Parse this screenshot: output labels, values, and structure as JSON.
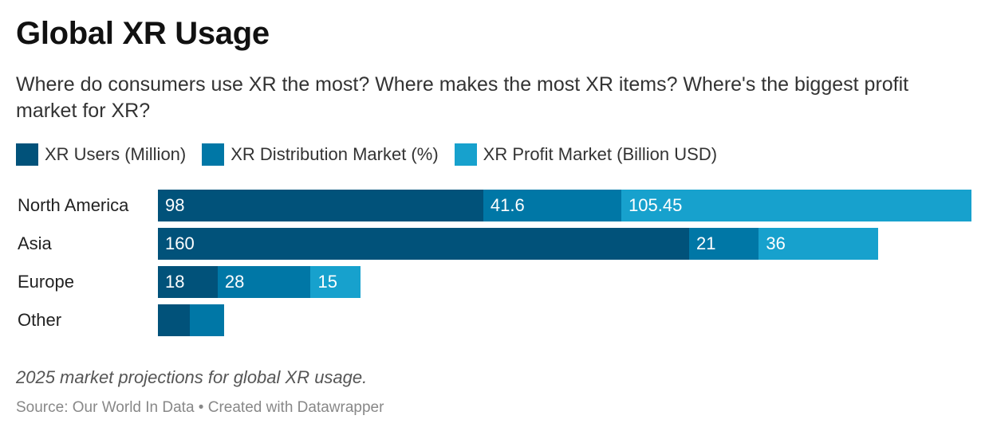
{
  "header": {
    "title": "Global XR Usage",
    "subtitle": "Where do consumers use XR the most? Where makes the most XR items? Where's the biggest profit market for XR?"
  },
  "legend": [
    {
      "label": "XR Users (Million)",
      "color": "#01527a"
    },
    {
      "label": "XR Distribution Market (%)",
      "color": "#0077a6"
    },
    {
      "label": "XR Profit Market (Billion USD)",
      "color": "#17a1cd"
    }
  ],
  "chart_data": {
    "type": "bar",
    "orientation": "horizontal",
    "stacked": true,
    "categories": [
      "North America",
      "Asia",
      "Europe",
      "Other"
    ],
    "series": [
      {
        "name": "XR Users (Million)",
        "values": [
          98,
          160,
          18,
          9.6
        ],
        "color": "#01527a",
        "labels": [
          "98",
          "160",
          "18",
          ""
        ]
      },
      {
        "name": "XR Distribution Market (%)",
        "values": [
          41.6,
          21,
          28,
          10.4
        ],
        "color": "#0077a6",
        "labels": [
          "41.6",
          "21",
          "28",
          ""
        ]
      },
      {
        "name": "XR Profit Market (Billion USD)",
        "values": [
          105.45,
          36,
          15,
          0
        ],
        "color": "#17a1cd",
        "labels": [
          "105.45",
          "36",
          "15",
          ""
        ]
      }
    ],
    "xlim": [
      0,
      245.05
    ],
    "legend_position": "top",
    "grid": false
  },
  "footer": {
    "notes": "2025 market projections for global XR usage.",
    "source": "Source: Our World In Data • Created with Datawrapper"
  }
}
